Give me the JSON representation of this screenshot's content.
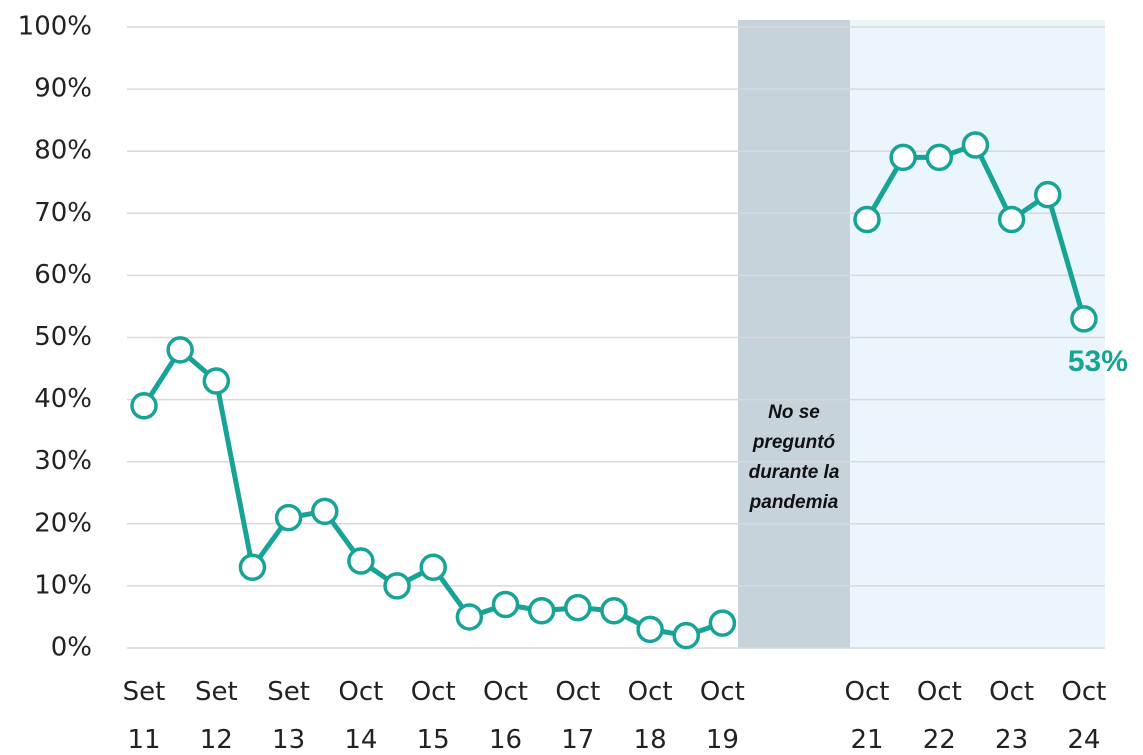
{
  "chart_data": {
    "type": "line",
    "categories": [
      "Set 11",
      null,
      "Set 12",
      null,
      "Set 13",
      null,
      "Oct 14",
      null,
      "Oct 15",
      null,
      "Oct 16",
      null,
      "Oct 17",
      null,
      "Oct 18",
      null,
      "Oct 19",
      null,
      null,
      null,
      "Oct 21",
      null,
      "Oct 22",
      null,
      "Oct 23",
      null,
      "Oct 24"
    ],
    "series": [
      {
        "name": null,
        "color": "#17a396",
        "values": [
          39,
          48,
          43,
          13,
          21,
          22,
          14,
          10,
          13,
          5,
          7,
          6,
          6.5,
          6,
          3,
          2,
          4,
          null,
          null,
          null,
          69,
          79,
          79,
          81,
          69,
          73,
          53
        ],
        "value_labels": [
          null,
          null,
          null,
          null,
          null,
          null,
          null,
          null,
          null,
          null,
          null,
          null,
          null,
          null,
          null,
          null,
          null,
          null,
          null,
          null,
          null,
          null,
          null,
          null,
          null,
          null,
          "53%"
        ]
      }
    ],
    "annotation": "No se preguntó durante la pandemia",
    "ylim": [
      0,
      100
    ],
    "yticks": [
      {
        "value": 0,
        "label": "0%"
      },
      {
        "value": 10,
        "label": "10%"
      },
      {
        "value": 20,
        "label": "20%"
      },
      {
        "value": 30,
        "label": "30%"
      },
      {
        "value": 40,
        "label": "40%"
      },
      {
        "value": 50,
        "label": "50%"
      },
      {
        "value": 60,
        "label": "60%"
      },
      {
        "value": 70,
        "label": "70%"
      },
      {
        "value": 80,
        "label": "80%"
      },
      {
        "value": 90,
        "label": "90%"
      },
      {
        "value": 100,
        "label": "100%"
      }
    ],
    "grid": true
  }
}
